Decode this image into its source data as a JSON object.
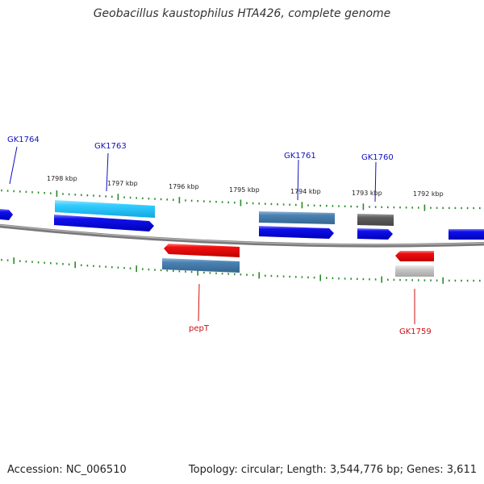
{
  "title": "Geobacillus kaustophilus HTA426, complete genome",
  "footer": {
    "accession": "Accession: NC_006510",
    "topology": "Topology: circular; Length: 3,544,776 bp; Genes: 3,611"
  },
  "kbp_labels": [
    "1798 kbp",
    "1797 kbp",
    "1796 kbp",
    "1795 kbp",
    "1794 kbp",
    "1793 kbp",
    "1792 kbp"
  ],
  "gene_labels": {
    "forward": [
      "GK1764",
      "GK1763",
      "GK1761",
      "GK1760"
    ],
    "reverse": [
      "pepT",
      "GK1759"
    ]
  },
  "colors": {
    "label_forward": "#1010c0",
    "label_reverse": "#d01010",
    "tick": "#2a8a2a",
    "backbone": "#808080",
    "cds_forward": "#0000e0",
    "cds_reverse": "#ee1010",
    "feat_cyan": "#33ccff",
    "feat_steel": "#4a82b4",
    "feat_gray": "#666666",
    "feat_lightgray": "#bdbdbd"
  }
}
